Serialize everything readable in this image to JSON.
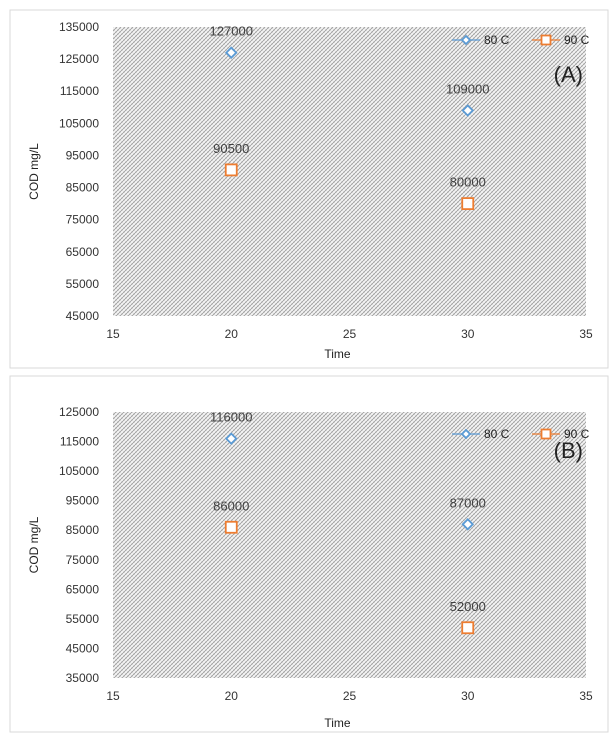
{
  "chart_data": [
    {
      "type": "scatter",
      "panel_label": "(A)",
      "xlabel": "Time",
      "ylabel": "COD  mg/L",
      "xlim": [
        15,
        35
      ],
      "xticks": [
        15,
        20,
        25,
        30,
        35
      ],
      "ylim": [
        45000,
        135000
      ],
      "yticks": [
        45000,
        55000,
        65000,
        75000,
        85000,
        95000,
        105000,
        115000,
        125000,
        135000
      ],
      "grid": false,
      "legend": "top-right",
      "series": [
        {
          "name": "80 C",
          "marker": "diamond",
          "color": "#5b9bd5",
          "points": [
            {
              "x": 20,
              "y": 127000,
              "label": "127000"
            },
            {
              "x": 30,
              "y": 109000,
              "label": "109000"
            }
          ]
        },
        {
          "name": "90 C",
          "marker": "square",
          "color": "#ed7d31",
          "points": [
            {
              "x": 20,
              "y": 90500,
              "label": "90500"
            },
            {
              "x": 30,
              "y": 80000,
              "label": "80000"
            }
          ]
        }
      ]
    },
    {
      "type": "scatter",
      "panel_label": "(B)",
      "xlabel": "Time",
      "ylabel": "COD  mg/L",
      "xlim": [
        15,
        35
      ],
      "xticks": [
        15,
        20,
        25,
        30,
        35
      ],
      "ylim": [
        35000,
        125000
      ],
      "yticks": [
        35000,
        45000,
        55000,
        65000,
        75000,
        85000,
        95000,
        105000,
        115000,
        125000
      ],
      "grid": false,
      "legend": "top-right",
      "series": [
        {
          "name": "80 C",
          "marker": "diamond",
          "color": "#5b9bd5",
          "points": [
            {
              "x": 20,
              "y": 116000,
              "label": "116000"
            },
            {
              "x": 30,
              "y": 87000,
              "label": "87000"
            }
          ]
        },
        {
          "name": "90 C",
          "marker": "square",
          "color": "#ed7d31",
          "points": [
            {
              "x": 20,
              "y": 86000,
              "label": "86000"
            },
            {
              "x": 30,
              "y": 52000,
              "label": "52000"
            }
          ]
        }
      ]
    }
  ]
}
